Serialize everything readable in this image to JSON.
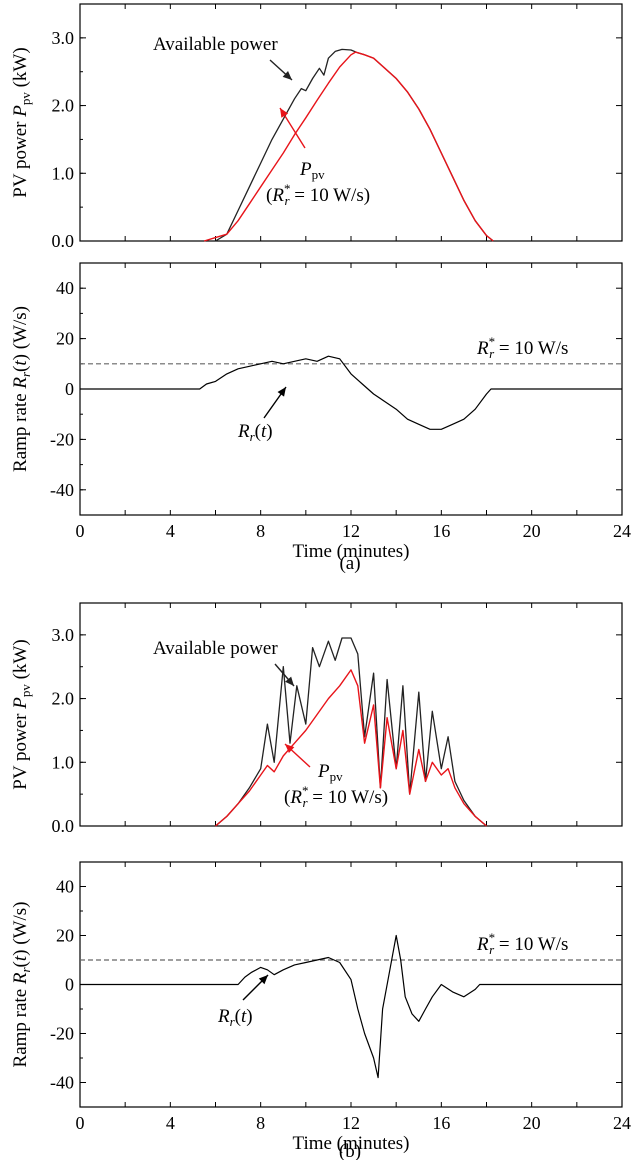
{
  "caption_a": "(a)",
  "caption_b": "(b)",
  "colors": {
    "available": "#222222",
    "ppv": "#e8141a",
    "rate": "#000000",
    "limit": "#666666",
    "axis": "#000000"
  },
  "chart_data": [
    {
      "id": "a-power",
      "type": "line",
      "ylabel": "PV power P_pv (kW)",
      "ylabel_main": "PV power ",
      "ylabel_var": "P",
      "ylabel_sub": "pv",
      "ylabel_unit": " (kW)",
      "xlim": [
        0,
        24
      ],
      "ylim": [
        0,
        3.5
      ],
      "yticks": [
        "0.0",
        "1.0",
        "2.0",
        "3.0"
      ],
      "grid": false,
      "series": [
        {
          "name": "Available power",
          "points": [
            [
              6,
              0
            ],
            [
              6.5,
              0.1
            ],
            [
              7,
              0.45
            ],
            [
              7.5,
              0.8
            ],
            [
              8,
              1.15
            ],
            [
              8.5,
              1.5
            ],
            [
              9,
              1.8
            ],
            [
              9.5,
              2.1
            ],
            [
              9.8,
              2.25
            ],
            [
              10,
              2.22
            ],
            [
              10.3,
              2.4
            ],
            [
              10.6,
              2.55
            ],
            [
              10.8,
              2.45
            ],
            [
              11,
              2.7
            ],
            [
              11.3,
              2.8
            ],
            [
              11.6,
              2.83
            ],
            [
              12,
              2.82
            ],
            [
              12.3,
              2.78
            ],
            [
              12.6,
              2.75
            ],
            [
              13,
              2.7
            ],
            [
              13.5,
              2.55
            ],
            [
              14,
              2.4
            ],
            [
              14.5,
              2.2
            ],
            [
              15,
              1.95
            ],
            [
              15.5,
              1.65
            ],
            [
              16,
              1.3
            ],
            [
              16.5,
              0.95
            ],
            [
              17,
              0.6
            ],
            [
              17.5,
              0.3
            ],
            [
              18,
              0.08
            ],
            [
              18.3,
              0
            ]
          ]
        },
        {
          "name": "P_pv",
          "label_var": "P",
          "label_sub": "pv",
          "label_rate": "(R*r = 10 W/s)",
          "points": [
            [
              5.5,
              0
            ],
            [
              6,
              0.05
            ],
            [
              6.5,
              0.1
            ],
            [
              7,
              0.3
            ],
            [
              7.5,
              0.55
            ],
            [
              8,
              0.8
            ],
            [
              8.5,
              1.05
            ],
            [
              9,
              1.3
            ],
            [
              9.5,
              1.57
            ],
            [
              10,
              1.82
            ],
            [
              10.5,
              2.08
            ],
            [
              11,
              2.33
            ],
            [
              11.5,
              2.57
            ],
            [
              12,
              2.75
            ],
            [
              12.2,
              2.79
            ],
            [
              12.6,
              2.75
            ],
            [
              13,
              2.7
            ],
            [
              13.5,
              2.55
            ],
            [
              14,
              2.4
            ],
            [
              14.5,
              2.2
            ],
            [
              15,
              1.95
            ],
            [
              15.5,
              1.65
            ],
            [
              16,
              1.3
            ],
            [
              16.5,
              0.95
            ],
            [
              17,
              0.6
            ],
            [
              17.5,
              0.3
            ],
            [
              18,
              0.08
            ],
            [
              18.3,
              0
            ]
          ]
        }
      ]
    },
    {
      "id": "a-rate",
      "type": "line",
      "xlabel": "Time (minutes)",
      "ylabel": "Ramp rate R_r(t) (W/s)",
      "xlim": [
        0,
        24
      ],
      "ylim": [
        -50,
        50
      ],
      "xticks": [
        "0",
        "4",
        "8",
        "12",
        "16",
        "20",
        "24"
      ],
      "yticks": [
        "-40",
        "-20",
        "0",
        "20",
        "40"
      ],
      "grid": false,
      "limit_line": {
        "value": 10,
        "label": "R*r = 10 W/s"
      },
      "series": [
        {
          "name": "R_r(t)",
          "points": [
            [
              0,
              0
            ],
            [
              5.3,
              0
            ],
            [
              5.6,
              2
            ],
            [
              6,
              3
            ],
            [
              6.5,
              6
            ],
            [
              7,
              8
            ],
            [
              7.5,
              9
            ],
            [
              8,
              10
            ],
            [
              8.5,
              11
            ],
            [
              9,
              10
            ],
            [
              9.5,
              11
            ],
            [
              10,
              12
            ],
            [
              10.5,
              11
            ],
            [
              11,
              13
            ],
            [
              11.5,
              12
            ],
            [
              12,
              6
            ],
            [
              12.5,
              2
            ],
            [
              13,
              -2
            ],
            [
              13.5,
              -5
            ],
            [
              14,
              -8
            ],
            [
              14.5,
              -12
            ],
            [
              15,
              -14
            ],
            [
              15.5,
              -16
            ],
            [
              16,
              -16
            ],
            [
              16.5,
              -14
            ],
            [
              17,
              -12
            ],
            [
              17.5,
              -8
            ],
            [
              18,
              -2
            ],
            [
              18.2,
              0
            ],
            [
              24,
              0
            ]
          ]
        }
      ]
    },
    {
      "id": "b-power",
      "type": "line",
      "ylabel": "PV power P_pv (kW)",
      "ylabel_main": "PV power ",
      "ylabel_var": "P",
      "ylabel_sub": "pv",
      "ylabel_unit": " (kW)",
      "xlim": [
        0,
        24
      ],
      "ylim": [
        0,
        3.5
      ],
      "yticks": [
        "0.0",
        "1.0",
        "2.0",
        "3.0"
      ],
      "grid": false,
      "series": [
        {
          "name": "Available power",
          "points": [
            [
              6,
              0
            ],
            [
              6.5,
              0.15
            ],
            [
              7,
              0.35
            ],
            [
              7.5,
              0.6
            ],
            [
              8,
              0.9
            ],
            [
              8.3,
              1.6
            ],
            [
              8.6,
              1.0
            ],
            [
              9,
              2.5
            ],
            [
              9.3,
              1.3
            ],
            [
              9.6,
              2.2
            ],
            [
              10,
              1.6
            ],
            [
              10.3,
              2.8
            ],
            [
              10.6,
              2.5
            ],
            [
              11,
              2.9
            ],
            [
              11.3,
              2.6
            ],
            [
              11.6,
              2.95
            ],
            [
              12,
              2.95
            ],
            [
              12.3,
              2.7
            ],
            [
              12.6,
              1.4
            ],
            [
              13,
              2.4
            ],
            [
              13.3,
              0.6
            ],
            [
              13.6,
              2.3
            ],
            [
              14,
              0.9
            ],
            [
              14.3,
              2.2
            ],
            [
              14.6,
              0.5
            ],
            [
              15,
              2.1
            ],
            [
              15.3,
              0.7
            ],
            [
              15.6,
              1.8
            ],
            [
              16,
              0.9
            ],
            [
              16.3,
              1.4
            ],
            [
              16.6,
              0.7
            ],
            [
              17,
              0.4
            ],
            [
              17.5,
              0.15
            ],
            [
              18,
              0
            ]
          ]
        },
        {
          "name": "P_pv",
          "label_var": "P",
          "label_sub": "pv",
          "label_rate": "(R*r = 10 W/s)",
          "points": [
            [
              6,
              0
            ],
            [
              6.5,
              0.15
            ],
            [
              7,
              0.35
            ],
            [
              7.5,
              0.55
            ],
            [
              8,
              0.8
            ],
            [
              8.3,
              0.95
            ],
            [
              8.6,
              0.85
            ],
            [
              9,
              1.1
            ],
            [
              9.5,
              1.3
            ],
            [
              10,
              1.5
            ],
            [
              10.5,
              1.75
            ],
            [
              11,
              2.0
            ],
            [
              11.5,
              2.2
            ],
            [
              12,
              2.45
            ],
            [
              12.3,
              2.2
            ],
            [
              12.6,
              1.3
            ],
            [
              13,
              1.9
            ],
            [
              13.3,
              0.6
            ],
            [
              13.6,
              1.7
            ],
            [
              14,
              0.9
            ],
            [
              14.3,
              1.5
            ],
            [
              14.6,
              0.5
            ],
            [
              15,
              1.2
            ],
            [
              15.3,
              0.7
            ],
            [
              15.6,
              1.0
            ],
            [
              16,
              0.8
            ],
            [
              16.3,
              0.9
            ],
            [
              16.6,
              0.6
            ],
            [
              17,
              0.35
            ],
            [
              17.5,
              0.15
            ],
            [
              18,
              0
            ]
          ]
        }
      ]
    },
    {
      "id": "b-rate",
      "type": "line",
      "xlabel": "Time (minutes)",
      "ylabel": "Ramp rate R_r(t) (W/s)",
      "xlim": [
        0,
        24
      ],
      "ylim": [
        -50,
        50
      ],
      "xticks": [
        "0",
        "4",
        "8",
        "12",
        "16",
        "20",
        "24"
      ],
      "yticks": [
        "-40",
        "-20",
        "0",
        "20",
        "40"
      ],
      "grid": false,
      "limit_line": {
        "value": 10,
        "label": "R*r = 10 W/s"
      },
      "series": [
        {
          "name": "R_r(t)",
          "points": [
            [
              0,
              0
            ],
            [
              7,
              0
            ],
            [
              7.3,
              3
            ],
            [
              7.6,
              5
            ],
            [
              8,
              7
            ],
            [
              8.3,
              6
            ],
            [
              8.6,
              4
            ],
            [
              9,
              6
            ],
            [
              9.5,
              8
            ],
            [
              10,
              9
            ],
            [
              10.5,
              10
            ],
            [
              11,
              11
            ],
            [
              11.5,
              9
            ],
            [
              12,
              2
            ],
            [
              12.3,
              -10
            ],
            [
              12.6,
              -20
            ],
            [
              13,
              -30
            ],
            [
              13.2,
              -38
            ],
            [
              13.4,
              -10
            ],
            [
              13.7,
              5
            ],
            [
              14,
              20
            ],
            [
              14.2,
              10
            ],
            [
              14.4,
              -5
            ],
            [
              14.7,
              -12
            ],
            [
              15,
              -15
            ],
            [
              15.3,
              -10
            ],
            [
              15.6,
              -5
            ],
            [
              16,
              0
            ],
            [
              16.5,
              -3
            ],
            [
              17,
              -5
            ],
            [
              17.5,
              -2
            ],
            [
              17.7,
              0
            ],
            [
              24,
              0
            ]
          ]
        }
      ]
    }
  ]
}
